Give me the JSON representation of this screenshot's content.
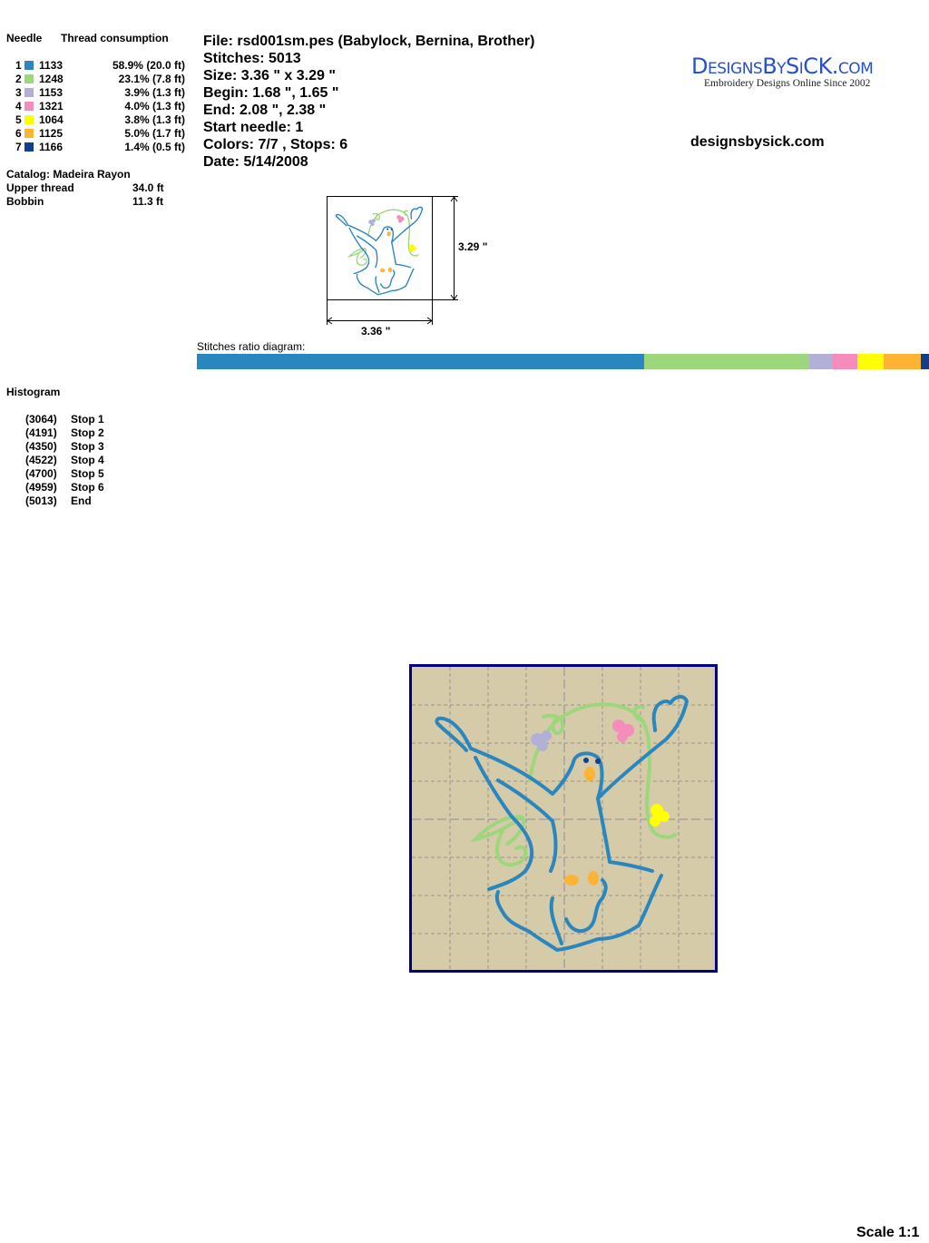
{
  "threads": {
    "needle_header": "Needle",
    "consumption_header": "Thread consumption",
    "rows": [
      {
        "needle": "1",
        "code": "1133",
        "consumption": "58.9% (20.0 ft)",
        "color": "#2a86bf"
      },
      {
        "needle": "2",
        "code": "1248",
        "consumption": "23.1% (7.8 ft)",
        "color": "#9ed67e"
      },
      {
        "needle": "3",
        "code": "1153",
        "consumption": "3.9% (1.3 ft)",
        "color": "#b3b0d8"
      },
      {
        "needle": "4",
        "code": "1321",
        "consumption": "4.0% (1.3 ft)",
        "color": "#f58cbc"
      },
      {
        "needle": "5",
        "code": "1064",
        "consumption": "3.8% (1.3 ft)",
        "color": "#ffff00"
      },
      {
        "needle": "6",
        "code": "1125",
        "consumption": "5.0% (1.7 ft)",
        "color": "#fdb435"
      },
      {
        "needle": "7",
        "code": "1166",
        "consumption": "1.4% (0.5 ft)",
        "color": "#123f8c"
      }
    ],
    "catalog": "Catalog: Madeira Rayon",
    "upper_label": "Upper thread",
    "upper_value": "34.0 ft",
    "bobbin_label": "Bobbin",
    "bobbin_value": "11.3 ft"
  },
  "info": {
    "file": "File: rsd001sm.pes  (Babylock, Bernina, Brother)",
    "stitches": "Stitches: 5013",
    "size": "Size: 3.36 \" x 3.29 \"",
    "begin": "Begin: 1.68 \", 1.65 \"",
    "end": "End: 2.08 \", 2.38 \"",
    "start_needle": "Start needle: 1",
    "colors": "Colors: 7/7 , Stops: 6",
    "date": "Date: 5/14/2008"
  },
  "brand": {
    "logo_text": "DesignsBySiCK.com",
    "logo_tagline": "Embroidery Designs Online Since 2002",
    "url": "designsbysick.com"
  },
  "thumbnail": {
    "height_label": "3.29 \"",
    "width_label": "3.36 \""
  },
  "ratio": {
    "label": "Stitches ratio diagram:"
  },
  "histogram": {
    "title": "Histogram",
    "rows": [
      {
        "count": "(3064)",
        "label": "Stop 1",
        "stitches": 3064
      },
      {
        "count": "(4191)",
        "label": "Stop 2",
        "stitches": 4191
      },
      {
        "count": "(4350)",
        "label": "Stop 3",
        "stitches": 4350
      },
      {
        "count": "(4522)",
        "label": "Stop 4",
        "stitches": 4522
      },
      {
        "count": "(4700)",
        "label": "Stop 5",
        "stitches": 4700
      },
      {
        "count": "(4959)",
        "label": "Stop 6",
        "stitches": 4959
      },
      {
        "count": "(5013)",
        "label": "End",
        "stitches": 5013
      }
    ]
  },
  "preview": {
    "background": "#d6cba8",
    "border": "#000080"
  },
  "footer": {
    "scale": "Scale 1:1"
  }
}
